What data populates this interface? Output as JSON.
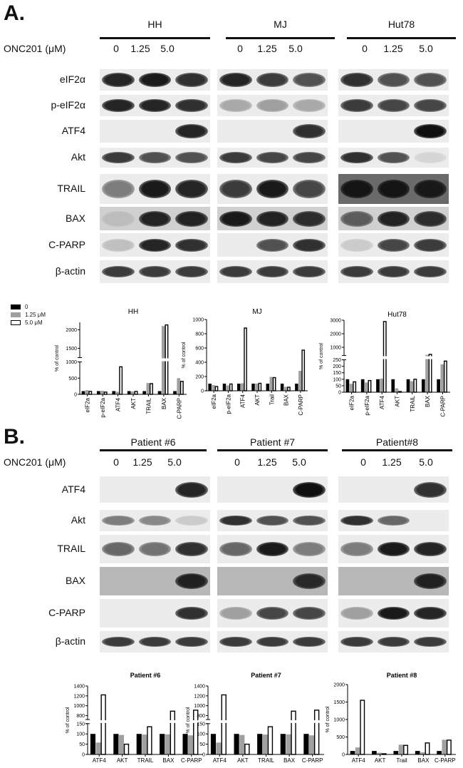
{
  "panel_a": {
    "letter": "A.",
    "treatment_label": "ONC201 (μM)",
    "groups": [
      {
        "name": "HH",
        "lanes": [
          "0",
          "1.25",
          "5.0"
        ]
      },
      {
        "name": "MJ",
        "lanes": [
          "0",
          "1.25",
          "5.0"
        ]
      },
      {
        "name": "Hut78",
        "lanes": [
          "0",
          "1.25",
          "5.0"
        ]
      }
    ],
    "blots": [
      {
        "label": "eIF2α",
        "band_intensity": [
          [
            0.9,
            0.95,
            0.85
          ],
          [
            0.9,
            0.8,
            0.7
          ],
          [
            0.85,
            0.7,
            0.7
          ]
        ]
      },
      {
        "label": "p-eIF2α",
        "band_intensity": [
          [
            0.9,
            0.9,
            0.85
          ],
          [
            0.3,
            0.35,
            0.3
          ],
          [
            0.8,
            0.75,
            0.75
          ]
        ]
      },
      {
        "label": "ATF4",
        "band_intensity": [
          [
            0,
            0,
            0.9
          ],
          [
            0,
            0,
            0.85
          ],
          [
            0,
            0,
            1
          ]
        ]
      },
      {
        "label": "Akt",
        "band_intensity": [
          [
            0.8,
            0.7,
            0.7
          ],
          [
            0.8,
            0.75,
            0.75
          ],
          [
            0.85,
            0.7,
            0.1
          ]
        ]
      },
      {
        "label": "TRAIL",
        "band_intensity": [
          [
            0.5,
            0.95,
            0.9
          ],
          [
            0.8,
            0.95,
            0.75
          ],
          [
            0.95,
            0.95,
            0.9
          ]
        ]
      },
      {
        "label": "BAX",
        "band_intensity": [
          [
            0.1,
            0.9,
            0.9
          ],
          [
            0.95,
            0.9,
            0.85
          ],
          [
            0.6,
            0.9,
            0.85
          ]
        ]
      },
      {
        "label": "C-PARP",
        "band_intensity": [
          [
            0.2,
            0.9,
            0.85
          ],
          [
            0,
            0.7,
            0.85
          ],
          [
            0.15,
            0.75,
            0.8
          ]
        ]
      },
      {
        "label": "β-actin",
        "band_intensity": [
          [
            0.8,
            0.8,
            0.8
          ],
          [
            0.8,
            0.8,
            0.8
          ],
          [
            0.8,
            0.8,
            0.8
          ]
        ]
      }
    ],
    "legend": [
      {
        "label": "0",
        "color": "#000000"
      },
      {
        "label": "1.25 μM",
        "color": "#a0a0a0"
      },
      {
        "label": "5.0 μM",
        "color": "#ffffff"
      }
    ]
  },
  "panel_b": {
    "letter": "B.",
    "treatment_label": "ONC201 (μM)",
    "groups": [
      {
        "name": "Patient #6",
        "lanes": [
          "0",
          "1.25",
          "5.0"
        ]
      },
      {
        "name": "Patient #7",
        "lanes": [
          "0",
          "1.25",
          "5.0"
        ]
      },
      {
        "name": "Patient#8",
        "lanes": [
          "0",
          "1.25",
          "5.0"
        ]
      }
    ],
    "blots": [
      {
        "label": "ATF4",
        "band_intensity": [
          [
            0,
            0,
            0.9
          ],
          [
            0,
            0,
            1
          ],
          [
            0,
            0,
            0.85
          ]
        ]
      },
      {
        "label": "Akt",
        "band_intensity": [
          [
            0.5,
            0.45,
            0.15
          ],
          [
            0.85,
            0.7,
            0.7
          ],
          [
            0.85,
            0.6,
            0
          ]
        ]
      },
      {
        "label": "TRAIL",
        "band_intensity": [
          [
            0.6,
            0.55,
            0.85
          ],
          [
            0.6,
            0.95,
            0.5
          ],
          [
            0.5,
            0.95,
            0.9
          ]
        ]
      },
      {
        "label": "BAX",
        "band_intensity": [
          [
            0,
            0,
            0.9
          ],
          [
            0,
            0,
            0.85
          ],
          [
            0,
            0,
            0.9
          ]
        ]
      },
      {
        "label": "C-PARP",
        "band_intensity": [
          [
            0,
            0,
            0.85
          ],
          [
            0.35,
            0.75,
            0.75
          ],
          [
            0.35,
            0.95,
            0.9
          ]
        ]
      },
      {
        "label": "β-actin",
        "band_intensity": [
          [
            0.8,
            0.8,
            0.8
          ],
          [
            0.8,
            0.8,
            0.8
          ],
          [
            0.8,
            0.8,
            0.8
          ]
        ]
      }
    ]
  },
  "chart_data": [
    {
      "type": "bar",
      "title": "HH",
      "ylabel": "% of control",
      "y_broken": true,
      "y_segments": [
        [
          0,
          1000
        ],
        [
          1250,
          2200
        ]
      ],
      "yticks": [
        0,
        500,
        1000,
        1500,
        2000
      ],
      "categories": [
        "eIF2a",
        "p-eIF2a",
        "ATF4",
        "AKT",
        "TRAIL",
        "BAX",
        "C-PARP"
      ],
      "series": [
        {
          "name": "0",
          "values": [
            100,
            100,
            100,
            100,
            100,
            100,
            100
          ]
        },
        {
          "name": "1.25 μM",
          "values": [
            130,
            110,
            80,
            90,
            350,
            2100,
            500
          ]
        },
        {
          "name": "5.0 μM",
          "values": [
            90,
            70,
            850,
            90,
            330,
            2130,
            400
          ]
        }
      ],
      "legend": "top-left"
    },
    {
      "type": "bar",
      "title": "MJ",
      "ylabel": "% of control",
      "y_broken": false,
      "y_segments": [
        [
          0,
          1000
        ]
      ],
      "yticks": [
        0,
        200,
        400,
        600,
        800,
        1000
      ],
      "categories": [
        "eIF2a",
        "p-eIF2a",
        "ATF4",
        "AKT",
        "Trail",
        "BAX",
        "C-PARP"
      ],
      "series": [
        {
          "name": "0",
          "values": [
            100,
            100,
            100,
            100,
            100,
            100,
            100
          ]
        },
        {
          "name": "1.25 μM",
          "values": [
            80,
            75,
            105,
            100,
            195,
            55,
            280
          ]
        },
        {
          "name": "5.0 μM",
          "values": [
            60,
            95,
            880,
            105,
            185,
            50,
            570
          ]
        }
      ]
    },
    {
      "type": "bar",
      "title": "Hut78",
      "ylabel": "% of control",
      "y_broken": true,
      "y_segments": [
        [
          0,
          250
        ],
        [
          400,
          3000
        ]
      ],
      "yticks": [
        0,
        50,
        100,
        150,
        200,
        250,
        1000,
        2000,
        3000
      ],
      "categories": [
        "eIF2a",
        "p-eIF2a",
        "ATF4",
        "AKT",
        "TRAIL",
        "BAX",
        "C-PARP"
      ],
      "series": [
        {
          "name": "0",
          "values": [
            100,
            100,
            100,
            100,
            100,
            100,
            100
          ]
        },
        {
          "name": "1.25 μM",
          "values": [
            65,
            75,
            105,
            30,
            85,
            450,
            215
          ]
        },
        {
          "name": "5.0 μM",
          "values": [
            80,
            90,
            2900,
            5,
            100,
            480,
            240
          ]
        }
      ]
    },
    {
      "type": "bar",
      "title": "Patient #6",
      "ylabel": "% of control",
      "y_broken": true,
      "y_segments": [
        [
          0,
          150
        ],
        [
          720,
          1400
        ]
      ],
      "yticks": [
        0,
        50,
        100,
        150,
        800,
        1000,
        1200,
        1400
      ],
      "categories": [
        "ATF4",
        "AKT",
        "TRAIL",
        "BAX",
        "C-PARP"
      ],
      "series": [
        {
          "name": "0",
          "values": [
            100,
            100,
            100,
            100,
            100
          ]
        },
        {
          "name": "1.25 μM",
          "values": [
            58,
            95,
            97,
            98,
            93
          ]
        },
        {
          "name": "5.0 μM",
          "values": [
            1220,
            50,
            135,
            890,
            910
          ]
        }
      ]
    },
    {
      "type": "bar",
      "title": "Patient #7",
      "ylabel": "% of control",
      "y_broken": true,
      "y_segments": [
        [
          0,
          150
        ],
        [
          720,
          1400
        ]
      ],
      "yticks": [
        0,
        50,
        100,
        150,
        800,
        1000,
        1200,
        1400
      ],
      "categories": [
        "ATF4",
        "AKT",
        "TRAIL",
        "BAX",
        "C-PARP"
      ],
      "series": [
        {
          "name": "0",
          "values": [
            100,
            100,
            100,
            100,
            100
          ]
        },
        {
          "name": "1.25 μM",
          "values": [
            58,
            95,
            97,
            98,
            93
          ]
        },
        {
          "name": "5.0 μM",
          "values": [
            1220,
            50,
            135,
            890,
            910
          ]
        }
      ]
    },
    {
      "type": "bar",
      "title": "Patient #8",
      "ylabel": "% of control",
      "y_broken": false,
      "y_segments": [
        [
          0,
          2000
        ]
      ],
      "yticks": [
        0,
        500,
        1000,
        1500,
        2000
      ],
      "categories": [
        "ATF4",
        "AKT",
        "Trail",
        "BAX",
        "C-PARP"
      ],
      "series": [
        {
          "name": "0",
          "values": [
            100,
            100,
            100,
            100,
            100
          ]
        },
        {
          "name": "1.25 μM",
          "values": [
            200,
            50,
            280,
            60,
            420
          ]
        },
        {
          "name": "5.0 μM",
          "values": [
            1550,
            20,
            260,
            330,
            410
          ]
        }
      ]
    }
  ]
}
